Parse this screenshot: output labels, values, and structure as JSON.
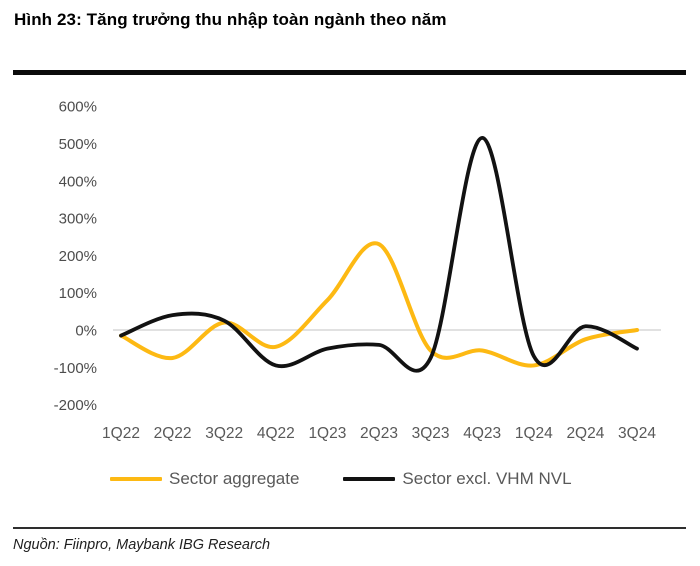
{
  "header": {
    "title": "Hình 23: Tăng trưởng thu nhập toàn ngành theo năm"
  },
  "footer": {
    "source": "Nguồn: Fiinpro, Maybank IBG Research"
  },
  "colors": {
    "aggregate_line": "#FDB913",
    "excl_line": "#121212",
    "axis_text": "#595959",
    "y_tick_text": "#4d4d4d",
    "zero_gridline": "#d7d7d7",
    "divider": "#0b0b0b"
  },
  "chart_data": {
    "type": "line",
    "title": "Hình 23: Tăng trưởng thu nhập toàn ngành theo năm",
    "categories": [
      "1Q22",
      "2Q22",
      "3Q22",
      "4Q22",
      "1Q23",
      "2Q23",
      "3Q23",
      "4Q23",
      "1Q24",
      "2Q24",
      "3Q24"
    ],
    "series": [
      {
        "name": "Sector aggregate",
        "color": "#FDB913",
        "values": [
          -15,
          -75,
          20,
          -45,
          80,
          230,
          -55,
          -55,
          -95,
          -25,
          0
        ]
      },
      {
        "name": "Sector excl. VHM NVL",
        "color": "#121212",
        "values": [
          -15,
          40,
          25,
          -95,
          -50,
          -40,
          -75,
          515,
          -70,
          10,
          -50
        ]
      }
    ],
    "unit": "%",
    "y_ticks": [
      {
        "value": 600,
        "label": "600%"
      },
      {
        "value": 500,
        "label": "500%"
      },
      {
        "value": 400,
        "label": "400%"
      },
      {
        "value": 300,
        "label": "300%"
      },
      {
        "value": 200,
        "label": "200%"
      },
      {
        "value": 100,
        "label": "100%"
      },
      {
        "value": 0,
        "label": "0%"
      },
      {
        "value": -100,
        "label": "-100%"
      },
      {
        "value": -200,
        "label": "-200%"
      }
    ],
    "ylim": [
      -200,
      600
    ],
    "gridlines": "zero-only",
    "smoothed": true,
    "legend_position": "bottom"
  }
}
